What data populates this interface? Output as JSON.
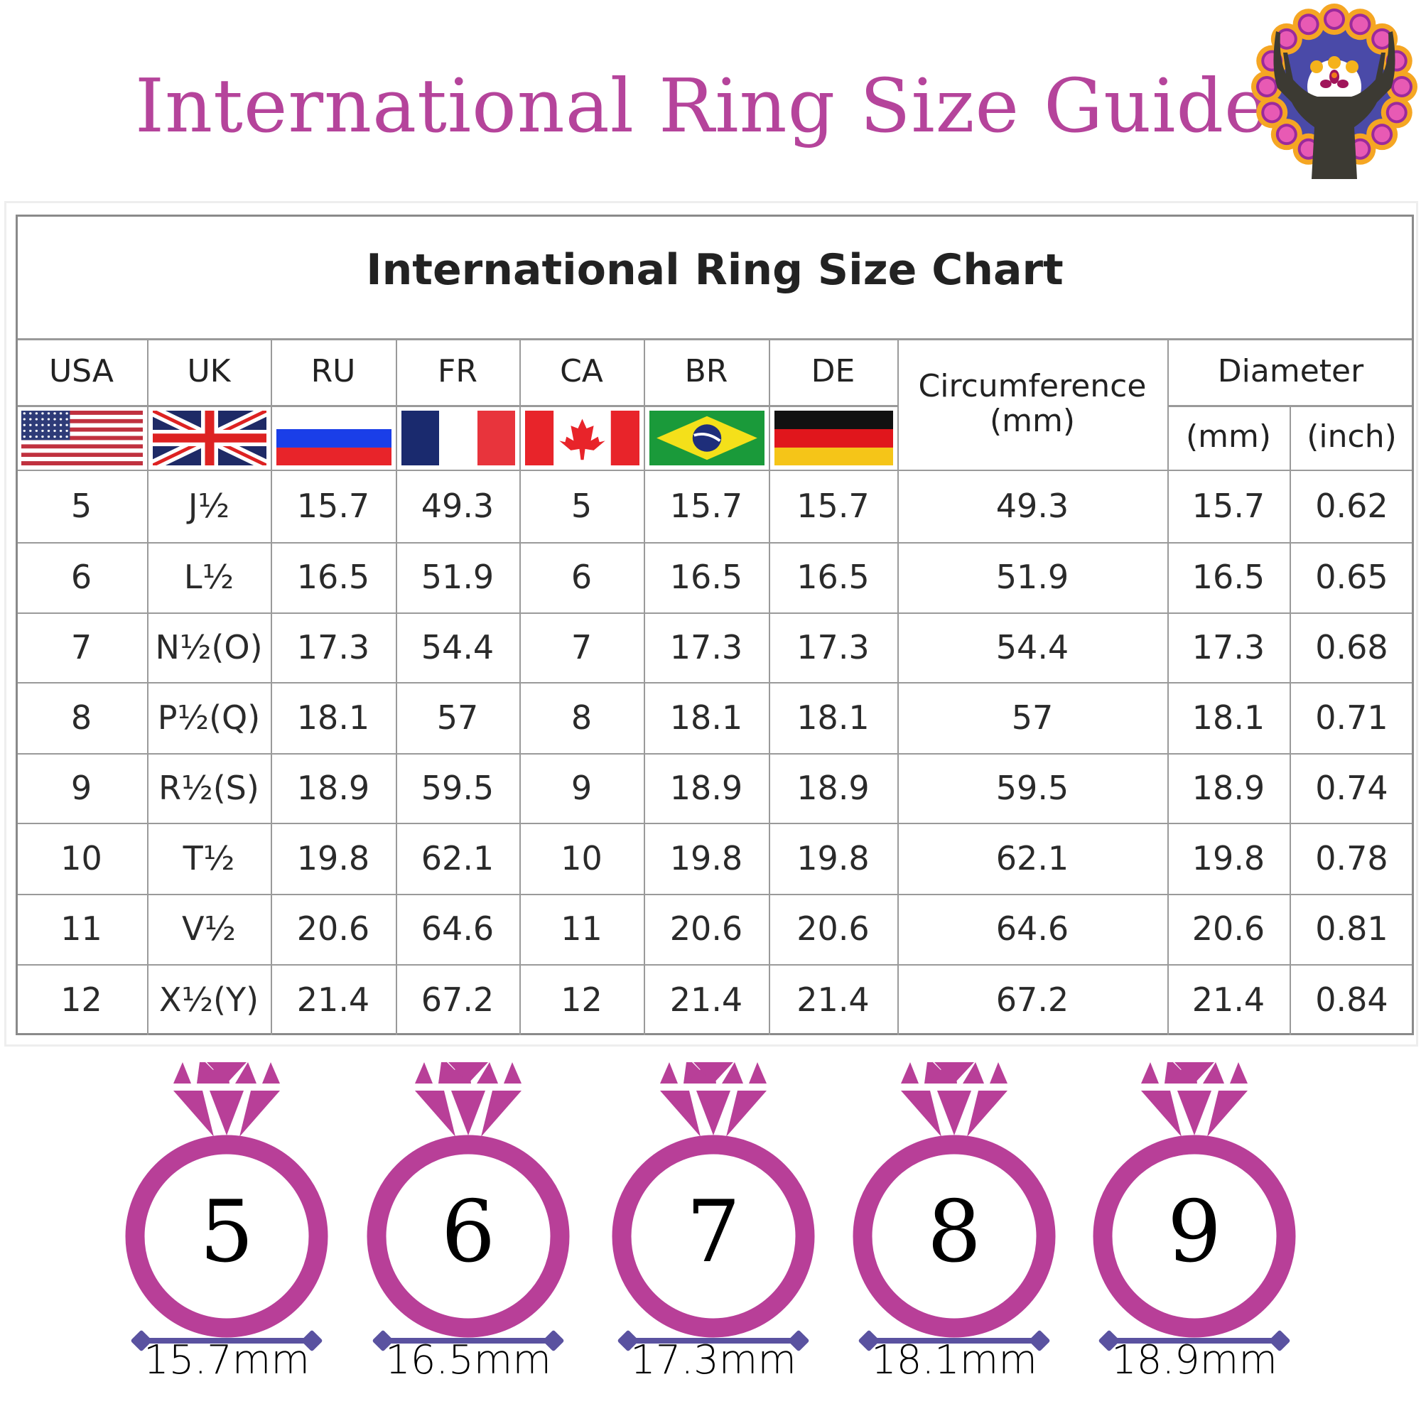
{
  "title": "International Ring Size Guide",
  "colors": {
    "title": "#b5449b",
    "ring": "#b83f98",
    "measure_bar": "#5a52a0"
  },
  "logo": {
    "icon": "stag-mandala-logo"
  },
  "chart": {
    "title": "International Ring Size Chart",
    "headers": [
      "USA",
      "UK",
      "RU",
      "FR",
      "CA",
      "BR",
      "DE"
    ],
    "circumference_header": [
      "Circumference",
      "(mm)"
    ],
    "diameter_header": "Diameter",
    "diameter_sub": [
      "(mm)",
      "(inch)"
    ],
    "flags": [
      "usa-flag-icon",
      "uk-flag-icon",
      "russia-flag-icon",
      "france-flag-icon",
      "canada-flag-icon",
      "brazil-flag-icon",
      "germany-flag-icon"
    ],
    "rows": [
      [
        "5",
        "J½",
        "15.7",
        "49.3",
        "5",
        "15.7",
        "15.7",
        "49.3",
        "15.7",
        "0.62"
      ],
      [
        "6",
        "L½",
        "16.5",
        "51.9",
        "6",
        "16.5",
        "16.5",
        "51.9",
        "16.5",
        "0.65"
      ],
      [
        "7",
        "N½(O)",
        "17.3",
        "54.4",
        "7",
        "17.3",
        "17.3",
        "54.4",
        "17.3",
        "0.68"
      ],
      [
        "8",
        "P½(Q)",
        "18.1",
        "57",
        "8",
        "18.1",
        "18.1",
        "57",
        "18.1",
        "0.71"
      ],
      [
        "9",
        "R½(S)",
        "18.9",
        "59.5",
        "9",
        "18.9",
        "18.9",
        "59.5",
        "18.9",
        "0.74"
      ],
      [
        "10",
        "T½",
        "19.8",
        "62.1",
        "10",
        "19.8",
        "19.8",
        "62.1",
        "19.8",
        "0.78"
      ],
      [
        "11",
        "V½",
        "20.6",
        "64.6",
        "11",
        "20.6",
        "20.6",
        "64.6",
        "20.6",
        "0.81"
      ],
      [
        "12",
        "X½(Y)",
        "21.4",
        "67.2",
        "12",
        "21.4",
        "21.4",
        "67.2",
        "21.4",
        "0.84"
      ]
    ]
  },
  "rings": [
    {
      "size": "5",
      "diameter": "15.7mm"
    },
    {
      "size": "6",
      "diameter": "16.5mm"
    },
    {
      "size": "7",
      "diameter": "17.3mm"
    },
    {
      "size": "8",
      "diameter": "18.1mm"
    },
    {
      "size": "9",
      "diameter": "18.9mm"
    }
  ]
}
